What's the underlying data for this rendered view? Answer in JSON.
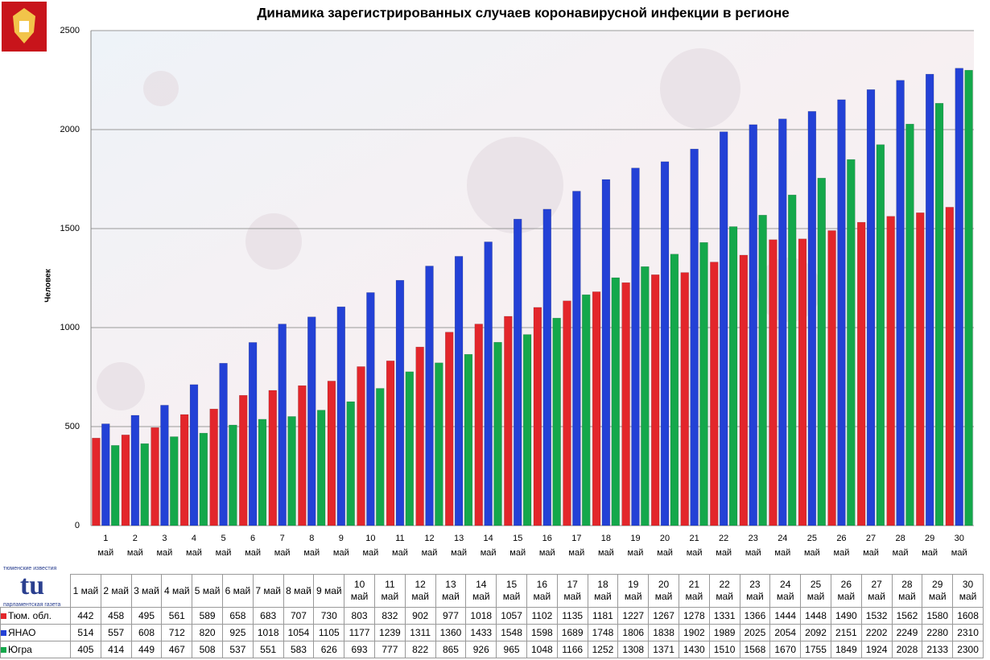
{
  "chart_data": {
    "type": "bar",
    "title": "Динамика зарегистрированных случаев коронавирусной инфекции в регионе",
    "y_label": "Человек",
    "categories": [
      "1 май",
      "2 май",
      "3 май",
      "4 май",
      "5 май",
      "6 май",
      "7 май",
      "8 май",
      "9 май",
      "10 май",
      "11 май",
      "12 май",
      "13 май",
      "14 май",
      "15 май",
      "16 май",
      "17 май",
      "18 май",
      "19 май",
      "20 май",
      "21 май",
      "22 май",
      "23 май",
      "24 май",
      "25 май",
      "26 май",
      "27 май",
      "28 май",
      "29 май",
      "30 май"
    ],
    "series": [
      {
        "name": "Тюм. обл.",
        "color": "#e3262b",
        "values": [
          442,
          458,
          495,
          561,
          589,
          658,
          683,
          707,
          730,
          803,
          832,
          902,
          977,
          1018,
          1057,
          1102,
          1135,
          1181,
          1227,
          1267,
          1278,
          1331,
          1366,
          1444,
          1448,
          1490,
          1532,
          1562,
          1580,
          1608
        ]
      },
      {
        "name": "ЯНАО",
        "color": "#2341d6",
        "values": [
          514,
          557,
          608,
          712,
          820,
          925,
          1018,
          1054,
          1105,
          1177,
          1239,
          1311,
          1360,
          1433,
          1548,
          1598,
          1689,
          1748,
          1806,
          1838,
          1902,
          1989,
          2025,
          2054,
          2092,
          2151,
          2202,
          2249,
          2280,
          2310
        ]
      },
      {
        "name": "Югра",
        "color": "#14a84b",
        "values": [
          405,
          414,
          449,
          467,
          508,
          537,
          551,
          583,
          626,
          693,
          777,
          822,
          865,
          926,
          965,
          1048,
          1166,
          1252,
          1308,
          1371,
          1430,
          1510,
          1568,
          1670,
          1755,
          1849,
          1924,
          2028,
          2133,
          2300
        ]
      }
    ],
    "ylim": [
      0,
      2500
    ],
    "yticks": [
      0,
      500,
      1000,
      1500,
      2000,
      2500
    ],
    "grid": true
  },
  "logo": {
    "top": "тюменские известия",
    "mark": "tu",
    "bottom": "парламентская газета"
  }
}
